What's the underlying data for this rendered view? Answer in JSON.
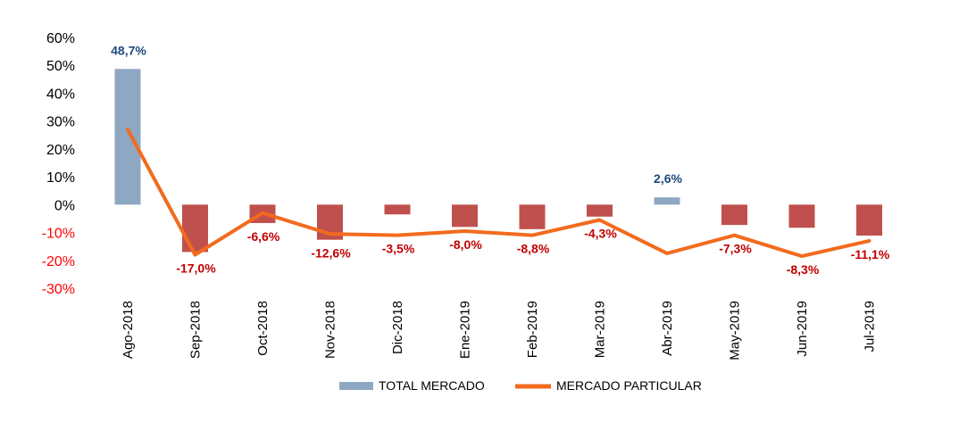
{
  "chart_data": {
    "type": "bar",
    "categories": [
      "Ago-2018",
      "Sep-2018",
      "Oct-2018",
      "Nov-2018",
      "Dic-2018",
      "Ene-2019",
      "Feb-2019",
      "Mar-2019",
      "Abr-2019",
      "May-2019",
      "Jun-2019",
      "Jul-2019"
    ],
    "series": [
      {
        "name": "TOTAL MERCADO",
        "type": "bar",
        "values": [
          48.7,
          -17.0,
          -6.6,
          -12.6,
          -3.5,
          -8.0,
          -8.8,
          -4.3,
          2.6,
          -7.3,
          -8.3,
          -11.1
        ],
        "data_labels": [
          "48,7%",
          "-17,0%",
          "-6,6%",
          "-12,6%",
          "-3,5%",
          "-8,0%",
          "-8,8%",
          "-4,3%",
          "2,6%",
          "-7,3%",
          "-8,3%",
          "-11,1%"
        ],
        "color_positive": "#8ea8c4",
        "color_negative": "#c0504d"
      },
      {
        "name": "MERCADO PARTICULAR",
        "type": "line",
        "values": [
          27,
          -18,
          -3,
          -10.5,
          -11,
          -9.5,
          -11,
          -5.5,
          -17.5,
          -11,
          -18.5,
          -13
        ],
        "color": "#f26b1d"
      }
    ],
    "y_ticks": [
      "60%",
      "50%",
      "40%",
      "30%",
      "20%",
      "10%",
      "0%",
      "-10%",
      "-20%",
      "-30%"
    ],
    "ylim": [
      -30,
      60
    ],
    "label_color_positive": "#1f497d",
    "label_color_negative": "#c00000",
    "tick_color_positive": "#000000",
    "tick_color_negative": "#ff0000",
    "legend_position": "bottom"
  }
}
